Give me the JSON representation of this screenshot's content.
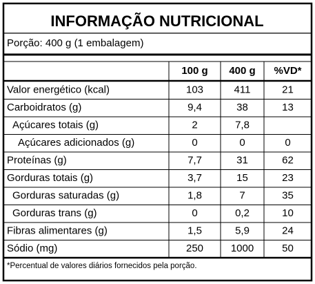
{
  "header": {
    "title": "INFORMAÇÃO NUTRICIONAL",
    "serving": "Porção: 400 g (1 embalagem)"
  },
  "table": {
    "columns": [
      "100 g",
      "400 g",
      "%VD*"
    ],
    "rows": [
      [
        "Valor energético (kcal)",
        "103",
        "411",
        "21"
      ],
      [
        "Carboidratos (g)",
        "9,4",
        "38",
        "13"
      ],
      [
        "Açúcares totais (g)",
        "2",
        "7,8",
        null
      ],
      [
        "Açúcares adicionados (g)",
        "0",
        "0",
        "0"
      ],
      [
        "Proteínas (g)",
        "7,7",
        "31",
        "62"
      ],
      [
        "Gorduras totais (g)",
        "3,7",
        "15",
        "23"
      ],
      [
        "Gorduras saturadas (g)",
        "1,8",
        "7",
        "35"
      ],
      [
        "Gorduras trans (g)",
        "0",
        "0,2",
        "10"
      ],
      [
        "Fibras alimentares (g)",
        "1,5",
        "5,9",
        "24"
      ],
      [
        "Sódio (mg)",
        "250",
        "1000",
        "50"
      ]
    ]
  },
  "footnote": "*Percentual de valores diários fornecidos pela porção."
}
